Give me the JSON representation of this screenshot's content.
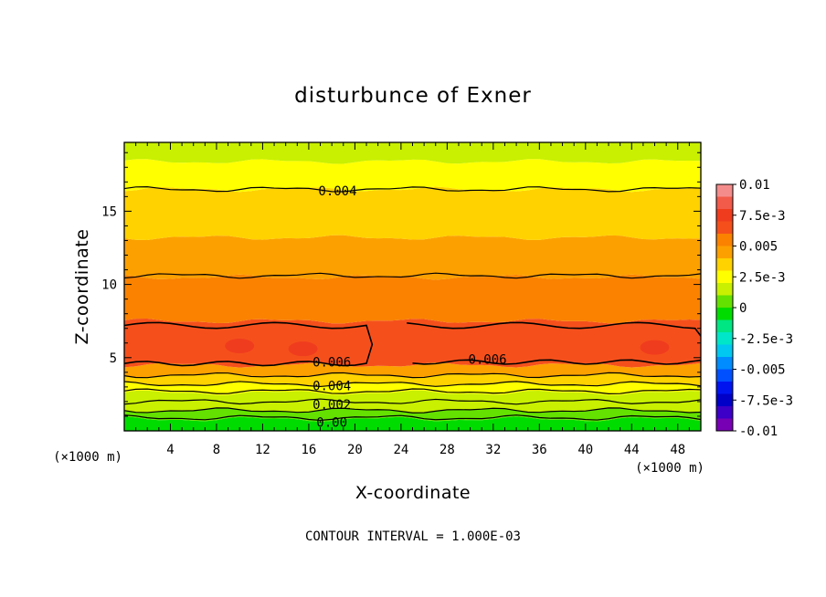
{
  "chart_data": {
    "type": "contour",
    "title": "disturbunce of Exner",
    "xlabel": "X-coordinate",
    "ylabel": "Z-coordinate",
    "x_unit": "(×1000 m)",
    "y_unit": "(×1000 m)",
    "xlim": [
      0,
      50
    ],
    "ylim": [
      0,
      19.7
    ],
    "x_ticks": [
      4,
      8,
      12,
      16,
      20,
      24,
      28,
      32,
      36,
      40,
      44,
      48
    ],
    "y_ticks": [
      5,
      10,
      15
    ],
    "footer": "CONTOUR INTERVAL = 1.000E-03",
    "colorbar": {
      "ticks": [
        "0.01",
        "7.5e-3",
        "0.005",
        "2.5e-3",
        "0",
        "-2.5e-3",
        "-0.005",
        "-7.5e-3",
        "-0.01"
      ],
      "levels": [
        {
          "value": 0.0095,
          "color": "#f58c8c"
        },
        {
          "value": 0.0085,
          "color": "#f25a4a"
        },
        {
          "value": 0.0075,
          "color": "#f03c1e"
        },
        {
          "value": 0.0065,
          "color": "#f5501c"
        },
        {
          "value": 0.0055,
          "color": "#fa8200"
        },
        {
          "value": 0.0045,
          "color": "#fca000"
        },
        {
          "value": 0.0035,
          "color": "#ffd200"
        },
        {
          "value": 0.0025,
          "color": "#ffff00"
        },
        {
          "value": 0.0015,
          "color": "#c8f000"
        },
        {
          "value": 0.0005,
          "color": "#64e100"
        },
        {
          "value": -0.0005,
          "color": "#00dc00"
        },
        {
          "value": -0.0015,
          "color": "#00e682"
        },
        {
          "value": -0.0025,
          "color": "#00e6c8"
        },
        {
          "value": -0.0035,
          "color": "#00c8f0"
        },
        {
          "value": -0.0045,
          "color": "#008cff"
        },
        {
          "value": -0.0055,
          "color": "#0050ff"
        },
        {
          "value": -0.0065,
          "color": "#0014f0"
        },
        {
          "value": -0.0075,
          "color": "#0000c8"
        },
        {
          "value": -0.0085,
          "color": "#3c00c8"
        },
        {
          "value": -0.0095,
          "color": "#7800b4"
        }
      ]
    },
    "bands": [
      {
        "z": [
          0.0,
          0.8
        ],
        "value": -0.0005
      },
      {
        "z": [
          0.8,
          1.4
        ],
        "value": 0.0005
      },
      {
        "z": [
          1.4,
          2.0
        ],
        "value": 0.0015
      },
      {
        "z": [
          2.0,
          2.6
        ],
        "value": 0.0015
      },
      {
        "z": [
          2.6,
          3.2
        ],
        "value": 0.0025
      },
      {
        "z": [
          3.2,
          3.8
        ],
        "value": 0.0035
      },
      {
        "z": [
          3.8,
          4.5
        ],
        "value": 0.0045
      },
      {
        "z": [
          4.5,
          7.5
        ],
        "value": 0.0065
      },
      {
        "z": [
          7.5,
          10.5
        ],
        "value": 0.0055
      },
      {
        "z": [
          10.5,
          13.2
        ],
        "value": 0.0045
      },
      {
        "z": [
          13.2,
          16.5
        ],
        "value": 0.0035
      },
      {
        "z": [
          16.5,
          18.4
        ],
        "value": 0.0025
      },
      {
        "z": [
          18.4,
          19.7
        ],
        "value": 0.0015
      }
    ],
    "contours": [
      {
        "value": 0.0,
        "z": 0.9
      },
      {
        "value": 0.001,
        "z": 1.4
      },
      {
        "value": 0.002,
        "z": 2.0
      },
      {
        "value": 0.003,
        "z": 2.7
      },
      {
        "value": 0.004,
        "z": 3.2
      },
      {
        "value": 0.005,
        "z": 3.8
      },
      {
        "value": 0.005,
        "z": 10.6
      },
      {
        "value": 0.004,
        "z": 16.5
      }
    ],
    "contour_labels": [
      {
        "text": "0.00",
        "x": 18,
        "z": 0.6
      },
      {
        "text": "0.002",
        "x": 18,
        "z": 1.8
      },
      {
        "text": "0.004",
        "x": 18,
        "z": 3.1
      },
      {
        "text": "0.006",
        "x": 18,
        "z": 4.7
      },
      {
        "text": "0.006",
        "x": 31.5,
        "z": 4.9
      },
      {
        "text": "0.004",
        "x": 18.5,
        "z": 16.4
      }
    ],
    "maxima": [
      {
        "x": 10,
        "z": 5.8,
        "value": 0.0075
      },
      {
        "x": 15.5,
        "z": 5.6,
        "value": 0.0075
      },
      {
        "x": 46,
        "z": 5.7,
        "value": 0.0075
      }
    ]
  }
}
